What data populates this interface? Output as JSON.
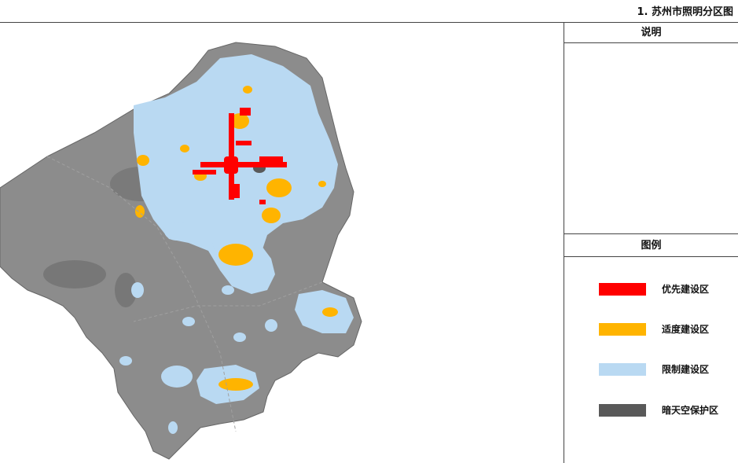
{
  "header": {
    "title": "1. 苏州市照明分区图"
  },
  "panel": {
    "notes_title": "说明",
    "legend_title": "图例",
    "legend": [
      {
        "label": "优先建设区",
        "color": "#ff0000"
      },
      {
        "label": "适度建设区",
        "color": "#ffb400"
      },
      {
        "label": "限制建设区",
        "color": "#b9d9f2"
      },
      {
        "label": "暗天空保护区",
        "color": "#595959"
      }
    ]
  },
  "map": {
    "background_color": "#8c8c8c",
    "limited_zone_color": "#b9d9f2",
    "moderate_zone_color": "#ffb400",
    "priority_zone_color": "#ff0000",
    "dark_sky_zone_color": "#595959"
  }
}
